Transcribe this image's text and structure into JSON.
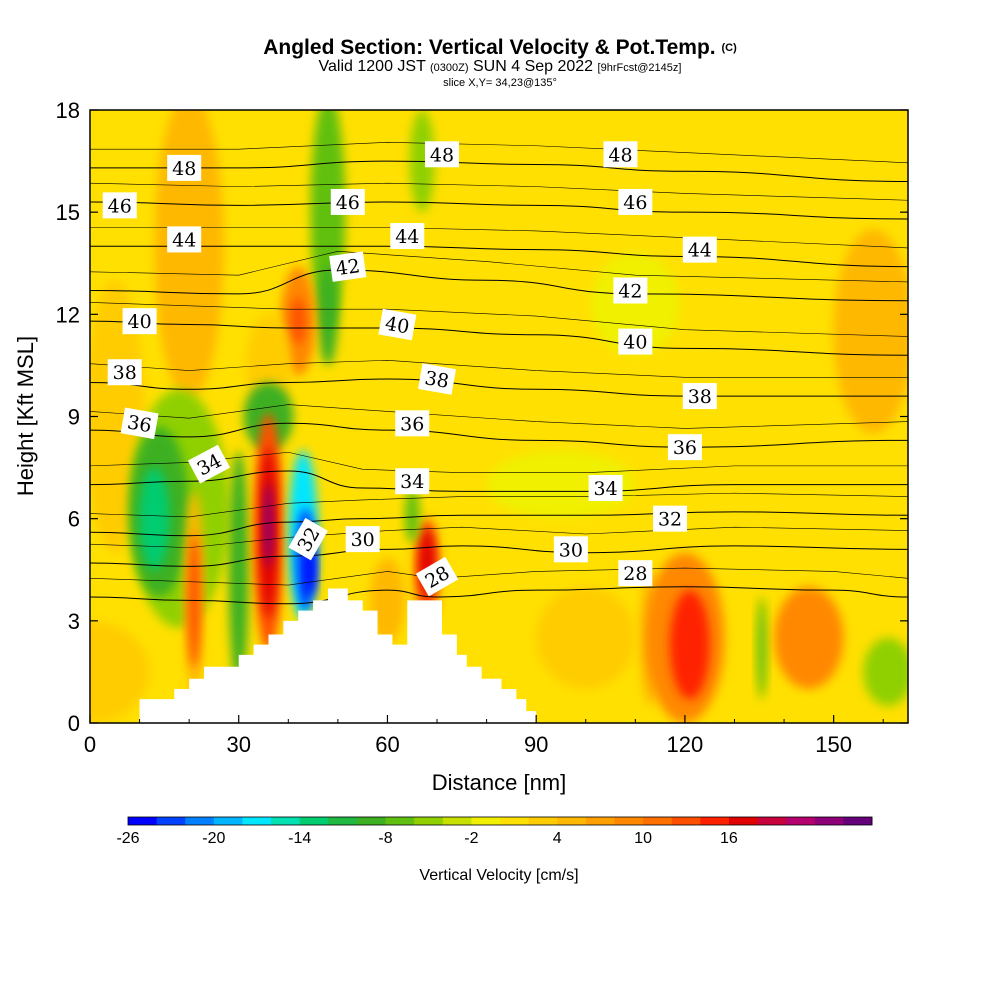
{
  "title": {
    "main": "Angled Section: Vertical Velocity & Pot.Temp.",
    "copyright": "(C)",
    "valid_prefix": "Valid 1200 JST",
    "valid_z": "(0300Z)",
    "valid_date": "SUN 4 Sep 2022",
    "forecast": "[9hrFcst@2145z]",
    "slice": "slice X,Y= 34,23@135°"
  },
  "chart_data": {
    "type": "heatmap",
    "xlabel": "Distance [nm]",
    "ylabel": "Height [Kft MSL]",
    "xlim": [
      0,
      165
    ],
    "ylim": [
      0,
      18
    ],
    "xticks": [
      "0",
      "30",
      "60",
      "90",
      "120",
      "150"
    ],
    "yticks": [
      "0",
      "3",
      "6",
      "9",
      "12",
      "15",
      "18"
    ],
    "colorbar": {
      "label": "Vertical Velocity [cm/s]",
      "ticks": [
        "-26",
        "-20",
        "-14",
        "-8",
        "-2",
        "4",
        "10",
        "16"
      ],
      "colors": [
        "#0000ff",
        "#0040ff",
        "#0080ff",
        "#00b4ff",
        "#00e6ff",
        "#00e0b0",
        "#00cc70",
        "#20b840",
        "#3cb020",
        "#60c010",
        "#90d000",
        "#c8e000",
        "#f0f000",
        "#ffe000",
        "#ffcc00",
        "#ffb800",
        "#ffa000",
        "#ff8800",
        "#ff7000",
        "#ff5000",
        "#ff2000",
        "#e00000",
        "#c8003c",
        "#b4006e",
        "#8c0078",
        "#640078"
      ]
    },
    "terrain": [
      [
        0,
        0
      ],
      [
        10,
        0
      ],
      [
        10,
        0.7
      ],
      [
        17,
        0.7
      ],
      [
        17,
        1
      ],
      [
        20,
        1
      ],
      [
        20,
        1.3
      ],
      [
        23,
        1.3
      ],
      [
        23,
        1.65
      ],
      [
        30,
        1.65
      ],
      [
        30,
        2
      ],
      [
        33,
        2
      ],
      [
        33,
        2.3
      ],
      [
        36,
        2.3
      ],
      [
        36,
        2.6
      ],
      [
        39,
        2.6
      ],
      [
        39,
        3
      ],
      [
        42,
        3
      ],
      [
        42,
        3.3
      ],
      [
        45,
        3.3
      ],
      [
        45,
        3.6
      ],
      [
        48,
        3.6
      ],
      [
        48,
        3.95
      ],
      [
        52,
        3.95
      ],
      [
        52,
        3.6
      ],
      [
        55,
        3.6
      ],
      [
        55,
        3.3
      ],
      [
        58,
        3.3
      ],
      [
        58,
        2.6
      ],
      [
        61,
        2.6
      ],
      [
        61,
        2.3
      ],
      [
        64,
        2.3
      ],
      [
        64,
        3.6
      ],
      [
        71,
        3.6
      ],
      [
        71,
        2.6
      ],
      [
        74,
        2.6
      ],
      [
        74,
        2
      ],
      [
        76,
        2
      ],
      [
        76,
        1.65
      ],
      [
        79,
        1.65
      ],
      [
        79,
        1.3
      ],
      [
        83,
        1.3
      ],
      [
        83,
        1
      ],
      [
        86,
        1
      ],
      [
        86,
        0.7
      ],
      [
        88,
        0.7
      ],
      [
        88,
        0.35
      ],
      [
        90,
        0.35
      ],
      [
        90,
        0
      ],
      [
        165,
        0
      ]
    ],
    "isentropes": [
      {
        "label": "28",
        "points": [
          [
            0,
            3.7
          ],
          [
            20,
            3.6
          ],
          [
            40,
            3.5
          ],
          [
            60,
            3.9
          ],
          [
            70,
            3.7
          ],
          [
            90,
            3.9
          ],
          [
            120,
            4.0
          ],
          [
            150,
            3.9
          ],
          [
            165,
            3.7
          ]
        ]
      },
      {
        "label": "30",
        "points": [
          [
            0,
            4.7
          ],
          [
            20,
            4.6
          ],
          [
            40,
            4.9
          ],
          [
            60,
            5.1
          ],
          [
            75,
            5.2
          ],
          [
            100,
            5.0
          ],
          [
            130,
            5.2
          ],
          [
            165,
            5.1
          ]
        ]
      },
      {
        "label": "32",
        "points": [
          [
            0,
            5.6
          ],
          [
            20,
            5.5
          ],
          [
            40,
            5.9
          ],
          [
            55,
            6.0
          ],
          [
            75,
            6.1
          ],
          [
            100,
            6.1
          ],
          [
            130,
            6.2
          ],
          [
            165,
            6.1
          ]
        ]
      },
      {
        "label": "34",
        "points": [
          [
            0,
            7.0
          ],
          [
            20,
            7.1
          ],
          [
            40,
            7.4
          ],
          [
            55,
            6.9
          ],
          [
            75,
            6.8
          ],
          [
            100,
            6.8
          ],
          [
            130,
            7.0
          ],
          [
            165,
            7.0
          ]
        ]
      },
      {
        "label": "36",
        "points": [
          [
            0,
            8.6
          ],
          [
            20,
            8.4
          ],
          [
            40,
            8.8
          ],
          [
            60,
            8.6
          ],
          [
            90,
            8.3
          ],
          [
            120,
            8.1
          ],
          [
            165,
            8.3
          ]
        ]
      },
      {
        "label": "38",
        "points": [
          [
            0,
            10.0
          ],
          [
            20,
            9.8
          ],
          [
            40,
            10.0
          ],
          [
            60,
            10.1
          ],
          [
            90,
            9.8
          ],
          [
            120,
            9.6
          ],
          [
            165,
            9.6
          ]
        ]
      },
      {
        "label": "40",
        "points": [
          [
            0,
            11.8
          ],
          [
            20,
            11.7
          ],
          [
            40,
            11.6
          ],
          [
            60,
            11.6
          ],
          [
            90,
            11.4
          ],
          [
            120,
            11.0
          ],
          [
            165,
            10.8
          ]
        ]
      },
      {
        "label": "42",
        "points": [
          [
            0,
            12.7
          ],
          [
            30,
            12.6
          ],
          [
            50,
            13.3
          ],
          [
            80,
            13.0
          ],
          [
            110,
            12.6
          ],
          [
            165,
            12.4
          ]
        ]
      },
      {
        "label": "44",
        "points": [
          [
            0,
            14.0
          ],
          [
            30,
            14.0
          ],
          [
            60,
            14.0
          ],
          [
            90,
            13.9
          ],
          [
            120,
            13.7
          ],
          [
            165,
            13.4
          ]
        ]
      },
      {
        "label": "46",
        "points": [
          [
            0,
            15.3
          ],
          [
            30,
            15.2
          ],
          [
            60,
            15.3
          ],
          [
            90,
            15.2
          ],
          [
            120,
            15.0
          ],
          [
            165,
            14.8
          ]
        ]
      },
      {
        "label": "48",
        "points": [
          [
            0,
            16.3
          ],
          [
            30,
            16.3
          ],
          [
            60,
            16.5
          ],
          [
            90,
            16.4
          ],
          [
            120,
            16.2
          ],
          [
            165,
            15.9
          ]
        ]
      }
    ],
    "contour_labels": [
      {
        "text": "48",
        "x": 19,
        "y": 16.3,
        "rot": 0
      },
      {
        "text": "48",
        "x": 71,
        "y": 16.7,
        "rot": 0
      },
      {
        "text": "48",
        "x": 107,
        "y": 16.7,
        "rot": 0
      },
      {
        "text": "46",
        "x": 6,
        "y": 15.2,
        "rot": 0
      },
      {
        "text": "46",
        "x": 52,
        "y": 15.3,
        "rot": 0
      },
      {
        "text": "46",
        "x": 110,
        "y": 15.3,
        "rot": 0
      },
      {
        "text": "44",
        "x": 19,
        "y": 14.2,
        "rot": 0
      },
      {
        "text": "44",
        "x": 64,
        "y": 14.3,
        "rot": 0
      },
      {
        "text": "44",
        "x": 123,
        "y": 13.9,
        "rot": 0
      },
      {
        "text": "42",
        "x": 52,
        "y": 13.4,
        "rot": -8
      },
      {
        "text": "42",
        "x": 109,
        "y": 12.7,
        "rot": 0
      },
      {
        "text": "40",
        "x": 10,
        "y": 11.8,
        "rot": 0
      },
      {
        "text": "40",
        "x": 62,
        "y": 11.7,
        "rot": 10
      },
      {
        "text": "40",
        "x": 110,
        "y": 11.2,
        "rot": 0
      },
      {
        "text": "38",
        "x": 7,
        "y": 10.3,
        "rot": 0
      },
      {
        "text": "38",
        "x": 70,
        "y": 10.1,
        "rot": 10
      },
      {
        "text": "38",
        "x": 123,
        "y": 9.6,
        "rot": 0
      },
      {
        "text": "36",
        "x": 10,
        "y": 8.8,
        "rot": 10
      },
      {
        "text": "36",
        "x": 65,
        "y": 8.8,
        "rot": 0
      },
      {
        "text": "36",
        "x": 120,
        "y": 8.1,
        "rot": 0
      },
      {
        "text": "34",
        "x": 24,
        "y": 7.6,
        "rot": -28
      },
      {
        "text": "34",
        "x": 65,
        "y": 7.1,
        "rot": 0
      },
      {
        "text": "34",
        "x": 104,
        "y": 6.9,
        "rot": 0
      },
      {
        "text": "32",
        "x": 44,
        "y": 5.4,
        "rot": -60
      },
      {
        "text": "32",
        "x": 117,
        "y": 6.0,
        "rot": 0
      },
      {
        "text": "30",
        "x": 55,
        "y": 5.4,
        "rot": 0
      },
      {
        "text": "30",
        "x": 97,
        "y": 5.1,
        "rot": 0
      },
      {
        "text": "28",
        "x": 70,
        "y": 4.3,
        "rot": -30
      },
      {
        "text": "28",
        "x": 110,
        "y": 4.4,
        "rot": 0
      }
    ],
    "velocity_features": [
      {
        "x": 0,
        "y": 9,
        "w": 165,
        "h": 18,
        "color": "#ffe000",
        "kind": "background"
      },
      {
        "x": 20,
        "y": 14,
        "w": 14,
        "h": 9,
        "color": "#ffb800"
      },
      {
        "x": 5,
        "y": 9,
        "w": 12,
        "h": 8,
        "color": "#ffcc00"
      },
      {
        "x": 110,
        "y": 12.3,
        "w": 18,
        "h": 3,
        "color": "#f0f000"
      },
      {
        "x": 158,
        "y": 11.5,
        "w": 16,
        "h": 6,
        "color": "#ffb800"
      },
      {
        "x": 95,
        "y": 7,
        "w": 30,
        "h": 2,
        "color": "#f0f000"
      },
      {
        "x": 48,
        "y": 15,
        "w": 7,
        "h": 7,
        "color": "#60c010"
      },
      {
        "x": 48,
        "y": 12,
        "w": 4,
        "h": 3,
        "color": "#3cb020"
      },
      {
        "x": 67,
        "y": 16.5,
        "w": 5,
        "h": 3,
        "color": "#90d000"
      },
      {
        "x": 42,
        "y": 11.8,
        "w": 7,
        "h": 3.2,
        "color": "#ff8800"
      },
      {
        "x": 42,
        "y": 11.8,
        "w": 3,
        "h": 1.4,
        "color": "#ff5000"
      },
      {
        "x": 36,
        "y": 10.5,
        "w": 9,
        "h": 3,
        "color": "#ffcc00"
      },
      {
        "x": 18,
        "y": 6.3,
        "w": 20,
        "h": 7,
        "color": "#90d000"
      },
      {
        "x": 14,
        "y": 6.2,
        "w": 12,
        "h": 5,
        "color": "#3cb020"
      },
      {
        "x": 13,
        "y": 6.0,
        "w": 6,
        "h": 3,
        "color": "#00cc70"
      },
      {
        "x": 36,
        "y": 9,
        "w": 10,
        "h": 2,
        "color": "#3cb020"
      },
      {
        "x": 21,
        "y": 3.8,
        "w": 4,
        "h": 6,
        "color": "#ffb800"
      },
      {
        "x": 21,
        "y": 3.6,
        "w": 2.5,
        "h": 4,
        "color": "#ff5000"
      },
      {
        "x": 30,
        "y": 4.5,
        "w": 4,
        "h": 7,
        "color": "#3cb020"
      },
      {
        "x": 36,
        "y": 5.6,
        "w": 6,
        "h": 7,
        "color": "#ff5000"
      },
      {
        "x": 36,
        "y": 5.6,
        "w": 3.5,
        "h": 5,
        "color": "#e00000"
      },
      {
        "x": 36,
        "y": 5.8,
        "w": 1.8,
        "h": 2.5,
        "color": "#8c0078"
      },
      {
        "x": 43,
        "y": 5.5,
        "w": 6,
        "h": 5,
        "color": "#00e6ff"
      },
      {
        "x": 43.5,
        "y": 4.8,
        "w": 4,
        "h": 3,
        "color": "#0040ff"
      },
      {
        "x": 44.5,
        "y": 4.5,
        "w": 2,
        "h": 1.5,
        "color": "#0000ff"
      },
      {
        "x": 60,
        "y": 3.6,
        "w": 7,
        "h": 2.5,
        "color": "#ffb800"
      },
      {
        "x": 68,
        "y": 4.5,
        "w": 5,
        "h": 3,
        "color": "#ff5000"
      },
      {
        "x": 68,
        "y": 4.7,
        "w": 3,
        "h": 2,
        "color": "#e00000"
      },
      {
        "x": 65,
        "y": 6.1,
        "w": 3,
        "h": 1.6,
        "color": "#60c010"
      },
      {
        "x": 113,
        "y": 2.5,
        "w": 4,
        "h": 4,
        "color": "#ffb800"
      },
      {
        "x": 120,
        "y": 2.5,
        "w": 16,
        "h": 5,
        "color": "#ff8800"
      },
      {
        "x": 121,
        "y": 2.3,
        "w": 8,
        "h": 3.2,
        "color": "#ff2000"
      },
      {
        "x": 135.5,
        "y": 2.2,
        "w": 2,
        "h": 3,
        "color": "#60c010"
      },
      {
        "x": 145,
        "y": 2.5,
        "w": 14,
        "h": 3,
        "color": "#ff8800"
      },
      {
        "x": 161,
        "y": 1.5,
        "w": 10,
        "h": 2,
        "color": "#90d000"
      },
      {
        "x": 0,
        "y": 1.5,
        "w": 24,
        "h": 3,
        "color": "#ffcc00"
      },
      {
        "x": 100,
        "y": 2.5,
        "w": 20,
        "h": 3,
        "color": "#ffcc00"
      }
    ]
  }
}
